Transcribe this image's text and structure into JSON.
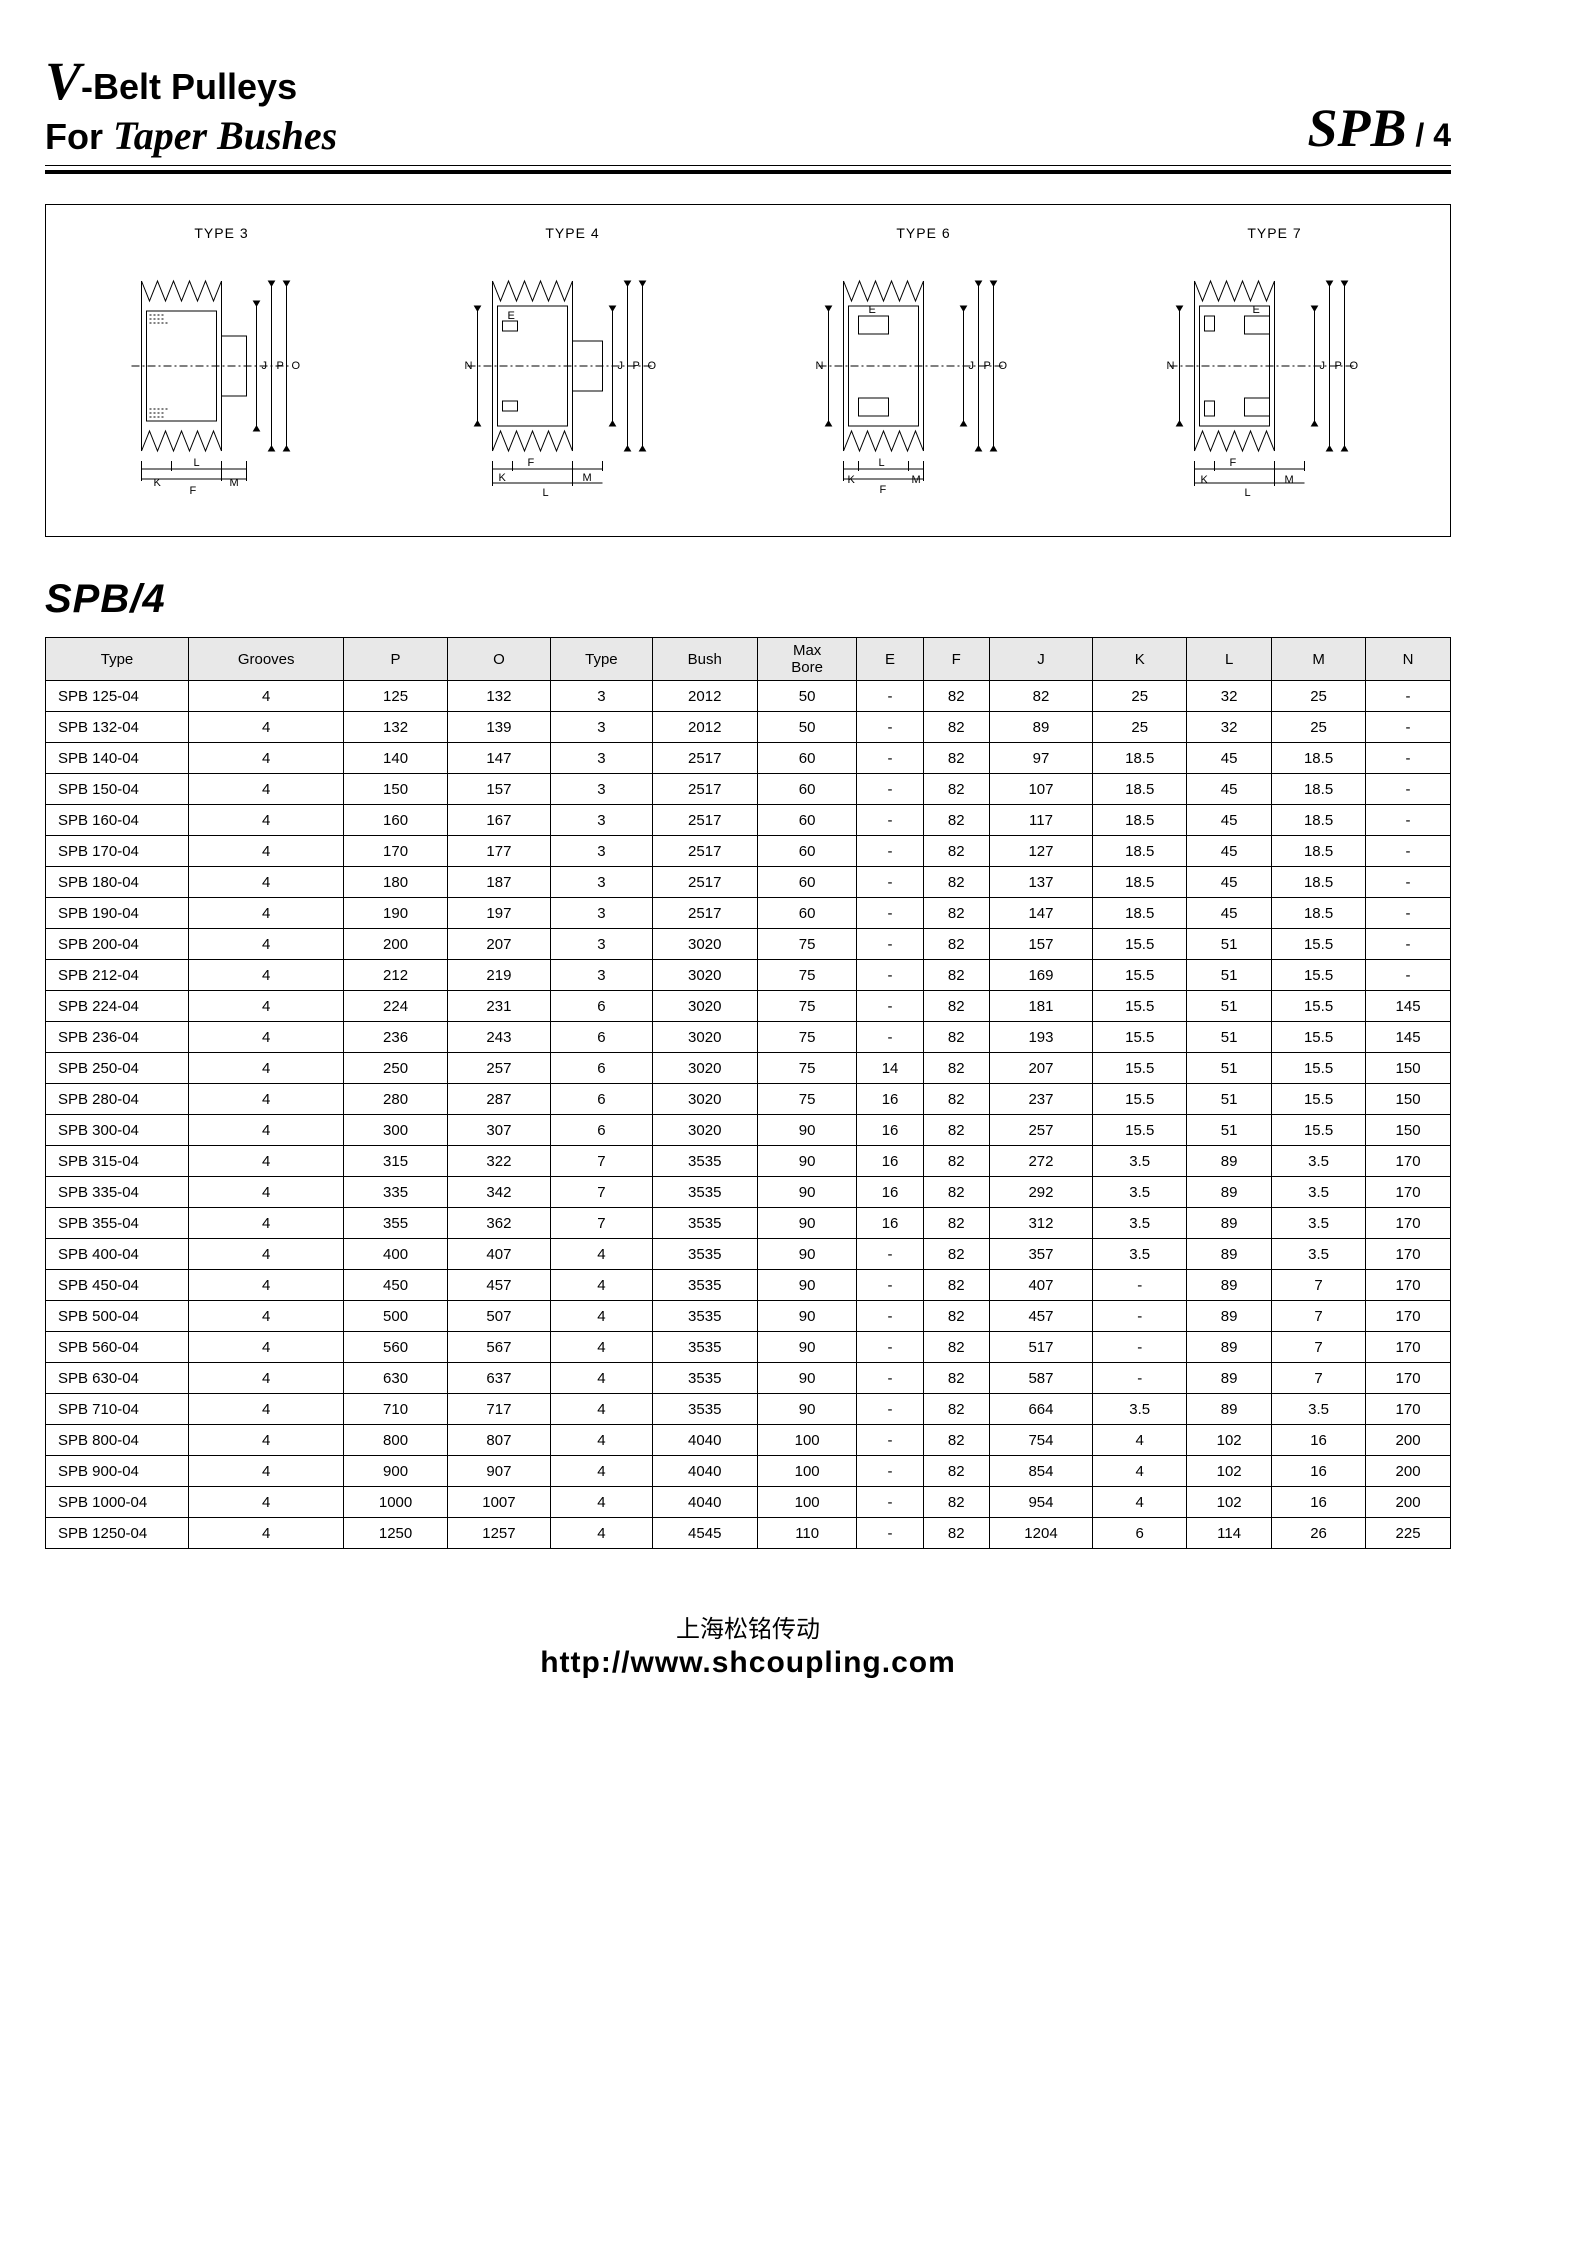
{
  "header": {
    "line1_prefix_v": "V",
    "line1_rest": "-Belt  Pulleys",
    "line2_prefix": "For ",
    "line2_taper": "Taper Bushes",
    "right_main": "SPB",
    "right_suffix": " / 4"
  },
  "diagrams": {
    "labels": [
      "TYPE 3",
      "TYPE 4",
      "TYPE 6",
      "TYPE 7"
    ],
    "dims": [
      "E",
      "J",
      "P",
      "O",
      "N",
      "K",
      "L",
      "M",
      "F"
    ]
  },
  "section_title": "SPB/4",
  "table": {
    "columns": [
      "Type",
      "Grooves",
      "P",
      "O",
      "Type",
      "Bush",
      "Max Bore",
      "E",
      "F",
      "J",
      "K",
      "L",
      "M",
      "N"
    ],
    "col_widths": [
      "120",
      "70",
      "70",
      "70",
      "70",
      "70",
      "70",
      "70",
      "70",
      "70",
      "70",
      "70",
      "70",
      "70"
    ],
    "rows": [
      [
        "SPB  125-04",
        "4",
        "125",
        "132",
        "3",
        "2012",
        "50",
        "-",
        "82",
        "82",
        "25",
        "32",
        "25",
        "-"
      ],
      [
        "SPB  132-04",
        "4",
        "132",
        "139",
        "3",
        "2012",
        "50",
        "-",
        "82",
        "89",
        "25",
        "32",
        "25",
        "-"
      ],
      [
        "SPB  140-04",
        "4",
        "140",
        "147",
        "3",
        "2517",
        "60",
        "-",
        "82",
        "97",
        "18.5",
        "45",
        "18.5",
        "-"
      ],
      [
        "SPB  150-04",
        "4",
        "150",
        "157",
        "3",
        "2517",
        "60",
        "-",
        "82",
        "107",
        "18.5",
        "45",
        "18.5",
        "-"
      ],
      [
        "SPB  160-04",
        "4",
        "160",
        "167",
        "3",
        "2517",
        "60",
        "-",
        "82",
        "117",
        "18.5",
        "45",
        "18.5",
        "-"
      ],
      [
        "SPB  170-04",
        "4",
        "170",
        "177",
        "3",
        "2517",
        "60",
        "-",
        "82",
        "127",
        "18.5",
        "45",
        "18.5",
        "-"
      ],
      [
        "SPB  180-04",
        "4",
        "180",
        "187",
        "3",
        "2517",
        "60",
        "-",
        "82",
        "137",
        "18.5",
        "45",
        "18.5",
        "-"
      ],
      [
        "SPB  190-04",
        "4",
        "190",
        "197",
        "3",
        "2517",
        "60",
        "-",
        "82",
        "147",
        "18.5",
        "45",
        "18.5",
        "-"
      ],
      [
        "SPB  200-04",
        "4",
        "200",
        "207",
        "3",
        "3020",
        "75",
        "-",
        "82",
        "157",
        "15.5",
        "51",
        "15.5",
        "-"
      ],
      [
        "SPB  212-04",
        "4",
        "212",
        "219",
        "3",
        "3020",
        "75",
        "-",
        "82",
        "169",
        "15.5",
        "51",
        "15.5",
        "-"
      ],
      [
        "SPB  224-04",
        "4",
        "224",
        "231",
        "6",
        "3020",
        "75",
        "-",
        "82",
        "181",
        "15.5",
        "51",
        "15.5",
        "145"
      ],
      [
        "SPB  236-04",
        "4",
        "236",
        "243",
        "6",
        "3020",
        "75",
        "-",
        "82",
        "193",
        "15.5",
        "51",
        "15.5",
        "145"
      ],
      [
        "SPB  250-04",
        "4",
        "250",
        "257",
        "6",
        "3020",
        "75",
        "14",
        "82",
        "207",
        "15.5",
        "51",
        "15.5",
        "150"
      ],
      [
        "SPB  280-04",
        "4",
        "280",
        "287",
        "6",
        "3020",
        "75",
        "16",
        "82",
        "237",
        "15.5",
        "51",
        "15.5",
        "150"
      ],
      [
        "SPB  300-04",
        "4",
        "300",
        "307",
        "6",
        "3020",
        "90",
        "16",
        "82",
        "257",
        "15.5",
        "51",
        "15.5",
        "150"
      ],
      [
        "SPB  315-04",
        "4",
        "315",
        "322",
        "7",
        "3535",
        "90",
        "16",
        "82",
        "272",
        "3.5",
        "89",
        "3.5",
        "170"
      ],
      [
        "SPB  335-04",
        "4",
        "335",
        "342",
        "7",
        "3535",
        "90",
        "16",
        "82",
        "292",
        "3.5",
        "89",
        "3.5",
        "170"
      ],
      [
        "SPB  355-04",
        "4",
        "355",
        "362",
        "7",
        "3535",
        "90",
        "16",
        "82",
        "312",
        "3.5",
        "89",
        "3.5",
        "170"
      ],
      [
        "SPB  400-04",
        "4",
        "400",
        "407",
        "4",
        "3535",
        "90",
        "-",
        "82",
        "357",
        "3.5",
        "89",
        "3.5",
        "170"
      ],
      [
        "SPB  450-04",
        "4",
        "450",
        "457",
        "4",
        "3535",
        "90",
        "-",
        "82",
        "407",
        "-",
        "89",
        "7",
        "170"
      ],
      [
        "SPB  500-04",
        "4",
        "500",
        "507",
        "4",
        "3535",
        "90",
        "-",
        "82",
        "457",
        "-",
        "89",
        "7",
        "170"
      ],
      [
        "SPB  560-04",
        "4",
        "560",
        "567",
        "4",
        "3535",
        "90",
        "-",
        "82",
        "517",
        "-",
        "89",
        "7",
        "170"
      ],
      [
        "SPB  630-04",
        "4",
        "630",
        "637",
        "4",
        "3535",
        "90",
        "-",
        "82",
        "587",
        "-",
        "89",
        "7",
        "170"
      ],
      [
        "SPB  710-04",
        "4",
        "710",
        "717",
        "4",
        "3535",
        "90",
        "-",
        "82",
        "664",
        "3.5",
        "89",
        "3.5",
        "170"
      ],
      [
        "SPB  800-04",
        "4",
        "800",
        "807",
        "4",
        "4040",
        "100",
        "-",
        "82",
        "754",
        "4",
        "102",
        "16",
        "200"
      ],
      [
        "SPB  900-04",
        "4",
        "900",
        "907",
        "4",
        "4040",
        "100",
        "-",
        "82",
        "854",
        "4",
        "102",
        "16",
        "200"
      ],
      [
        "SPB  1000-04",
        "4",
        "1000",
        "1007",
        "4",
        "4040",
        "100",
        "-",
        "82",
        "954",
        "4",
        "102",
        "16",
        "200"
      ],
      [
        "SPB  1250-04",
        "4",
        "1250",
        "1257",
        "4",
        "4545",
        "110",
        "-",
        "82",
        "1204",
        "6",
        "114",
        "26",
        "225"
      ]
    ]
  },
  "footer": {
    "cn": "上海松铭传动",
    "url": "http://www.shcoupling.com"
  },
  "colors": {
    "border": "#000000",
    "header_bg": "#e8e8e8",
    "text": "#000000",
    "background": "#ffffff"
  }
}
